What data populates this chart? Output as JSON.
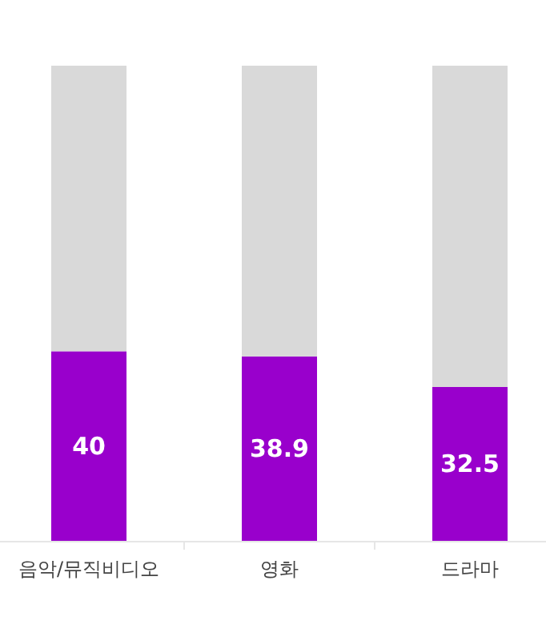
{
  "chart_data": {
    "type": "bar",
    "stacked": true,
    "categories": [
      "음악/뮤직비디오",
      "영화",
      "드라마"
    ],
    "ylim": [
      0,
      100
    ],
    "tick_labels": "x",
    "series": [
      {
        "color": "#9900cc",
        "values": [
          40,
          38.9,
          32.5
        ],
        "value_labels": [
          "40",
          "38.9",
          "32.5"
        ]
      },
      {
        "color": "#d9d9d9",
        "values": [
          60,
          61.1,
          67.5
        ]
      }
    ]
  }
}
